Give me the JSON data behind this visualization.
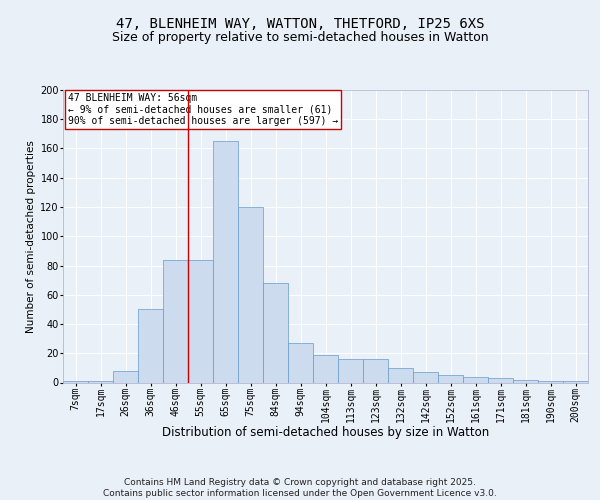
{
  "title1": "47, BLENHEIM WAY, WATTON, THETFORD, IP25 6XS",
  "title2": "Size of property relative to semi-detached houses in Watton",
  "xlabel": "Distribution of semi-detached houses by size in Watton",
  "ylabel": "Number of semi-detached properties",
  "bins": [
    "7sqm",
    "17sqm",
    "26sqm",
    "36sqm",
    "46sqm",
    "55sqm",
    "65sqm",
    "75sqm",
    "84sqm",
    "94sqm",
    "104sqm",
    "113sqm",
    "123sqm",
    "132sqm",
    "142sqm",
    "152sqm",
    "161sqm",
    "171sqm",
    "181sqm",
    "190sqm",
    "200sqm"
  ],
  "values": [
    1,
    1,
    8,
    50,
    84,
    84,
    165,
    120,
    68,
    27,
    19,
    16,
    16,
    10,
    7,
    5,
    4,
    3,
    2,
    1,
    1
  ],
  "bar_color": "#ccdcee",
  "bar_edge_color": "#6699cc",
  "vline_x_idx": 5,
  "vline_color": "#cc0000",
  "annotation_text": "47 BLENHEIM WAY: 56sqm\n← 9% of semi-detached houses are smaller (61)\n90% of semi-detached houses are larger (597) →",
  "annotation_box_color": "#ffffff",
  "annotation_box_edge": "#cc0000",
  "footer_text": "Contains HM Land Registry data © Crown copyright and database right 2025.\nContains public sector information licensed under the Open Government Licence v3.0.",
  "ylim": [
    0,
    200
  ],
  "yticks": [
    0,
    20,
    40,
    60,
    80,
    100,
    120,
    140,
    160,
    180,
    200
  ],
  "bg_color": "#eaf0f8",
  "plot_bg_color": "#eaf0f8",
  "title1_fontsize": 10,
  "title2_fontsize": 9,
  "xlabel_fontsize": 8.5,
  "ylabel_fontsize": 7.5,
  "footer_fontsize": 6.5,
  "tick_fontsize": 7,
  "annotation_fontsize": 7
}
